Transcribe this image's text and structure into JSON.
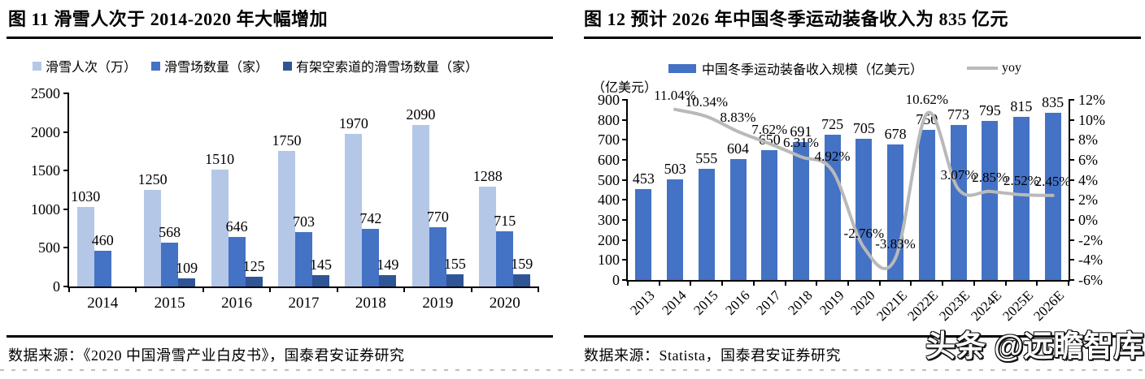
{
  "watermark": {
    "text": "头条 @远瞻智库"
  },
  "colors": {
    "light_blue": "#b4c7e7",
    "medium_blue": "#4472c4",
    "dark_blue": "#2f5597",
    "line_gray": "#b9b9b9",
    "axis_black": "#000000"
  },
  "chart_data": [
    {
      "type": "bar",
      "title": "图 11 滑雪人次于 2014-2020 年大幅增加",
      "source": "数据来源：《2020 中国滑雪产业白皮书》，国泰君安证券研究",
      "categories": [
        "2014",
        "2015",
        "2016",
        "2017",
        "2018",
        "2019",
        "2020"
      ],
      "series": [
        {
          "name": "滑雪人次（万）",
          "color": "#b4c7e7",
          "values": [
            1030,
            1250,
            1510,
            1750,
            1970,
            2090,
            1288
          ]
        },
        {
          "name": "滑雪场数量（家）",
          "color": "#4472c4",
          "values": [
            460,
            568,
            646,
            703,
            742,
            770,
            715
          ]
        },
        {
          "name": "有架空索道的滑雪场数量（家）",
          "color": "#2f5597",
          "values": [
            null,
            109,
            125,
            145,
            149,
            155,
            159
          ]
        }
      ],
      "ylim": [
        0,
        2500
      ],
      "yticks": [
        0,
        500,
        1000,
        1500,
        2000,
        2500
      ],
      "grid": false,
      "legend_position": "top",
      "data_labels": true
    },
    {
      "type": "bar+line",
      "title": "图 12 预计 2026 年中国冬季运动装备收入为 835 亿元",
      "source": "数据来源：Statista，国泰君安证券研究",
      "unit_label": "（亿美元）",
      "categories": [
        "2013",
        "2014",
        "2015",
        "2016",
        "2017",
        "2018",
        "2019",
        "2020",
        "2021E",
        "2022E",
        "2023E",
        "2024E",
        "2025E",
        "2026E"
      ],
      "bar_series": {
        "name": "中国冬季运动装备收入规模（亿美元）",
        "color": "#4472c4",
        "values": [
          453,
          503,
          555,
          604,
          650,
          691,
          725,
          705,
          678,
          750,
          773,
          795,
          815,
          835
        ]
      },
      "line_series": {
        "name": "yoy",
        "color": "#b9b9b9",
        "axis": "right",
        "values_percent": [
          null,
          11.04,
          10.34,
          8.83,
          7.62,
          6.31,
          4.92,
          -2.76,
          -3.83,
          10.62,
          3.07,
          2.85,
          2.52,
          2.45
        ],
        "labels": [
          "",
          "11.04%",
          "10.34%",
          "8.83%",
          "7.62%",
          "6.31%",
          "4.92%",
          "-2.76%",
          "-3.83%",
          "10.62%",
          "3.07%",
          "2.85%",
          "2.52%",
          "2.45%"
        ]
      },
      "left_axis": {
        "lim": [
          0,
          900
        ],
        "ticks": [
          0,
          100,
          200,
          300,
          400,
          500,
          600,
          700,
          800,
          900
        ]
      },
      "right_axis": {
        "lim_percent": [
          -6,
          12
        ],
        "tick_labels": [
          "12%",
          "10%",
          "8%",
          "6%",
          "4%",
          "2%",
          "0%",
          "-2%",
          "-4%",
          "-6%"
        ]
      },
      "grid": false,
      "x_label_rotation": -45,
      "data_labels": true,
      "legend_position": "top"
    }
  ]
}
